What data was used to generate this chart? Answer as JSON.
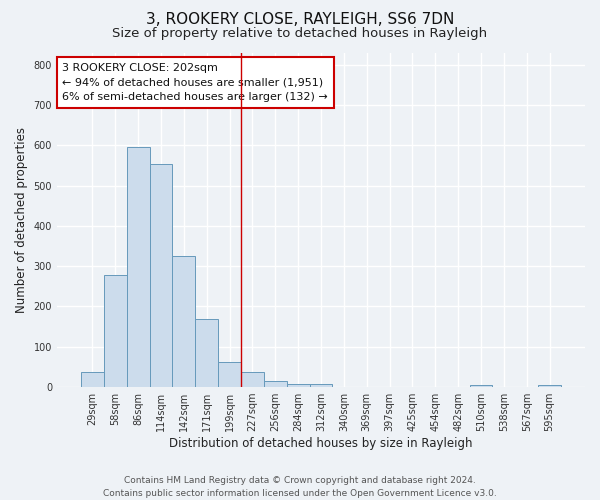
{
  "title": "3, ROOKERY CLOSE, RAYLEIGH, SS6 7DN",
  "subtitle": "Size of property relative to detached houses in Rayleigh",
  "xlabel": "Distribution of detached houses by size in Rayleigh",
  "ylabel": "Number of detached properties",
  "footer_line1": "Contains HM Land Registry data © Crown copyright and database right 2024.",
  "footer_line2": "Contains public sector information licensed under the Open Government Licence v3.0.",
  "bar_labels": [
    "29sqm",
    "58sqm",
    "86sqm",
    "114sqm",
    "142sqm",
    "171sqm",
    "199sqm",
    "227sqm",
    "256sqm",
    "284sqm",
    "312sqm",
    "340sqm",
    "369sqm",
    "397sqm",
    "425sqm",
    "454sqm",
    "482sqm",
    "510sqm",
    "538sqm",
    "567sqm",
    "595sqm"
  ],
  "bar_values": [
    38,
    278,
    595,
    553,
    325,
    170,
    63,
    37,
    14,
    8,
    8,
    0,
    0,
    0,
    0,
    0,
    0,
    5,
    0,
    0,
    4
  ],
  "bar_color": "#ccdcec",
  "bar_edge_color": "#6699bb",
  "ylim": [
    0,
    830
  ],
  "yticks": [
    0,
    100,
    200,
    300,
    400,
    500,
    600,
    700,
    800
  ],
  "vline_color": "#cc0000",
  "annotation_title": "3 ROOKERY CLOSE: 202sqm",
  "annotation_line1": "← 94% of detached houses are smaller (1,951)",
  "annotation_line2": "6% of semi-detached houses are larger (132) →",
  "annotation_box_color": "#ffffff",
  "annotation_box_edge": "#cc0000",
  "bg_color": "#eef2f6",
  "grid_color": "#ffffff",
  "title_fontsize": 11,
  "subtitle_fontsize": 9.5,
  "axis_label_fontsize": 8.5,
  "tick_fontsize": 7,
  "annotation_fontsize": 8,
  "footer_fontsize": 6.5
}
